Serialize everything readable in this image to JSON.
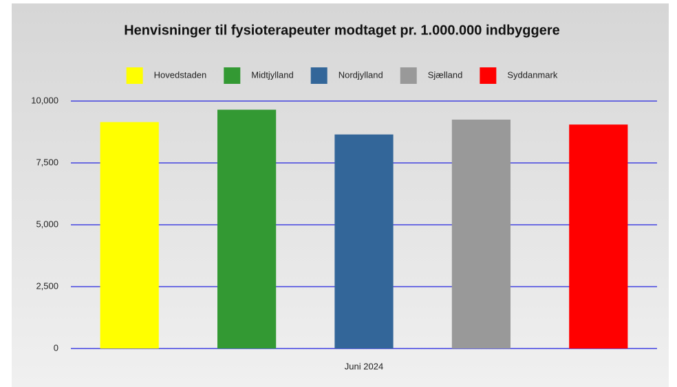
{
  "chart_data": {
    "type": "bar",
    "title": "Henvisninger til fysioterapeuter modtaget pr. 1.000.000 indbyggere",
    "categories": [
      "Juni 2024"
    ],
    "series": [
      {
        "name": "Hovedstaden",
        "color": "#ffff00",
        "values": [
          9150
        ]
      },
      {
        "name": "Midtjylland",
        "color": "#339933",
        "values": [
          9650
        ]
      },
      {
        "name": "Nordjylland",
        "color": "#336699",
        "values": [
          8650
        ]
      },
      {
        "name": "Sjælland",
        "color": "#999999",
        "values": [
          9250
        ]
      },
      {
        "name": "Syddanmark",
        "color": "#ff0000",
        "values": [
          9050
        ]
      }
    ],
    "ylim": [
      0,
      10000
    ],
    "yticks": [
      0,
      {
        "value": 2500,
        "label": "2,500"
      },
      {
        "value": 5000,
        "label": "5,000"
      },
      {
        "value": 7500,
        "label": "7,500"
      },
      {
        "value": 10000,
        "label": "10,000"
      }
    ],
    "grid": true,
    "legend": "top"
  }
}
